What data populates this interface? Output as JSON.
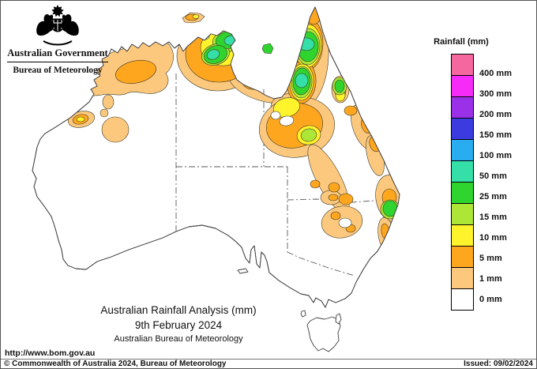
{
  "header": {
    "gov_title": "Australian Government",
    "bureau_title": "Bureau of Meteorology"
  },
  "legend": {
    "title": "Rainfall (mm)",
    "entries": [
      {
        "color": "#f4679f",
        "label": "400 mm"
      },
      {
        "color": "#f72bf7",
        "label": "300 mm"
      },
      {
        "color": "#9a30e8",
        "label": "200 mm"
      },
      {
        "color": "#3b3be0",
        "label": "150 mm"
      },
      {
        "color": "#29acf0",
        "label": "100 mm"
      },
      {
        "color": "#35dfa8",
        "label": "50 mm"
      },
      {
        "color": "#2fd42f",
        "label": "25 mm"
      },
      {
        "color": "#ade636",
        "label": "15 mm"
      },
      {
        "color": "#fff32b",
        "label": "10 mm"
      },
      {
        "color": "#ffa61f",
        "label": "5 mm"
      },
      {
        "color": "#fcc87e",
        "label": "1 mm"
      },
      {
        "color": "#ffffff",
        "label": "0 mm"
      }
    ]
  },
  "map": {
    "palette": {
      "mm1": "#fcc87e",
      "mm5": "#ffa61f",
      "mm10": "#fff32b",
      "mm15": "#ade636",
      "mm25": "#2fd42f",
      "mm50": "#35dfa8"
    }
  },
  "titles": {
    "line1": "Australian Rainfall Analysis (mm)",
    "line2": "9th February 2024",
    "line3": "Australian Bureau of Meteorology"
  },
  "footer": {
    "url": "http://www.bom.gov.au",
    "copyright": "© Commonwealth of Australia 2024, Bureau of Meteorology",
    "issued": "Issued: 09/02/2024"
  }
}
